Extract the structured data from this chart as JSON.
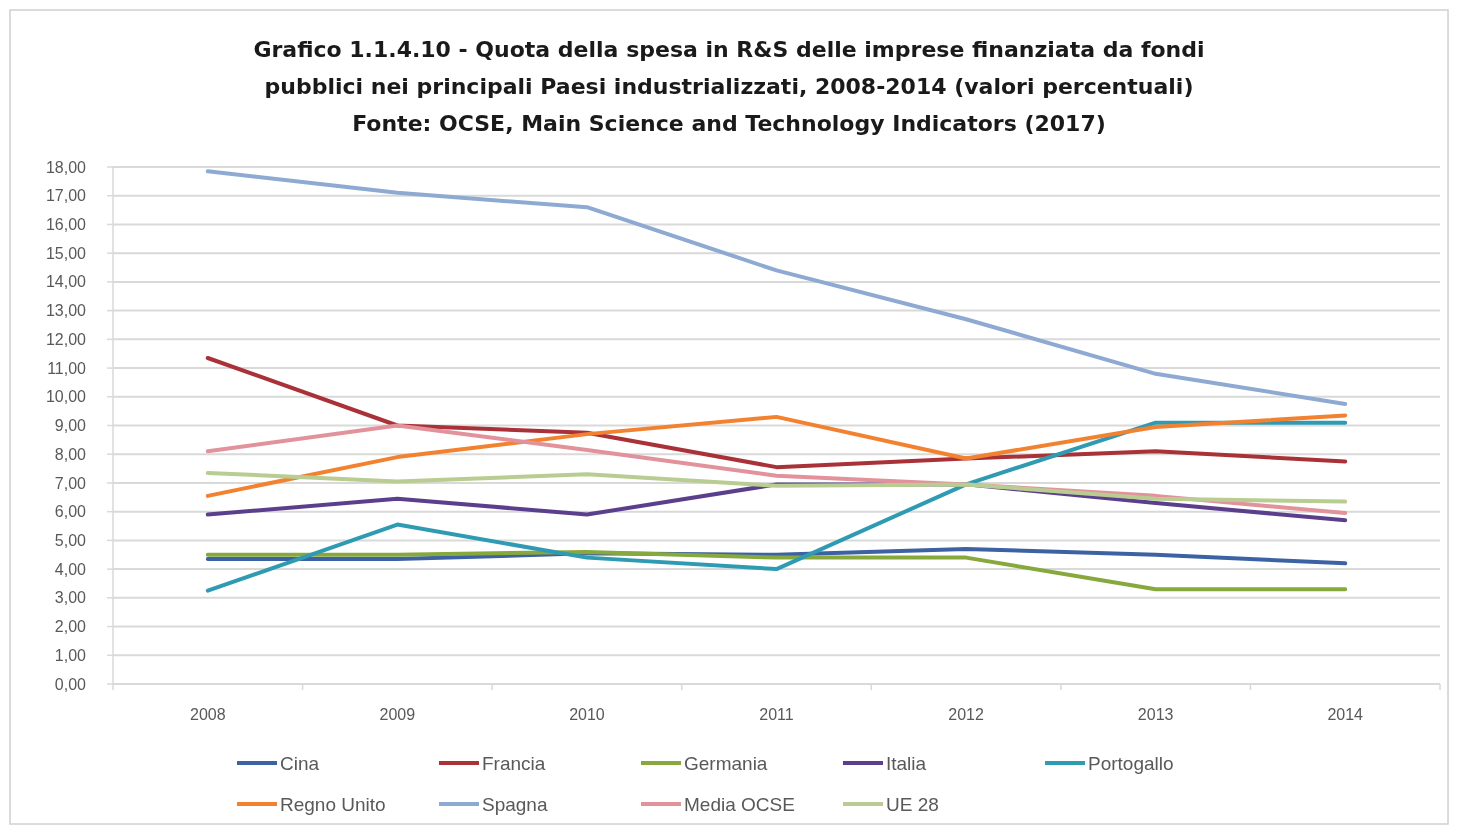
{
  "chart_data": {
    "type": "line",
    "title": "Grafico 1.1.4.10 - Quota della spesa in R&S delle imprese finanziata da fondi pubblici nei principali Paesi industrializzati, 2008-2014 (valori percentuali)",
    "annotations": [
      "Fonte: OCSE, Main Science and Technology Indicators (2017)"
    ],
    "categories": [
      "2008",
      "2009",
      "2010",
      "2011",
      "2012",
      "2013",
      "2014"
    ],
    "series": [
      {
        "name": "Cina",
        "color": "#3d62a3",
        "values": [
          4.35,
          4.35,
          4.55,
          4.5,
          4.7,
          4.5,
          4.2
        ]
      },
      {
        "name": "Francia",
        "color": "#a93239",
        "values": [
          11.35,
          9.0,
          8.75,
          7.55,
          7.85,
          8.1,
          7.75
        ]
      },
      {
        "name": "Germania",
        "color": "#86a83c",
        "values": [
          4.5,
          4.5,
          4.6,
          4.4,
          4.4,
          3.3,
          3.3
        ]
      },
      {
        "name": "Italia",
        "color": "#5b3f8c",
        "values": [
          5.9,
          6.45,
          5.9,
          6.95,
          6.95,
          6.3,
          5.7
        ]
      },
      {
        "name": "Portogallo",
        "color": "#2f9bb2",
        "values": [
          3.25,
          5.55,
          4.4,
          4.0,
          6.95,
          9.1,
          9.1
        ]
      },
      {
        "name": "Regno Unito",
        "color": "#f28230",
        "values": [
          6.55,
          7.9,
          8.7,
          9.3,
          7.85,
          8.95,
          9.35
        ]
      },
      {
        "name": "Spagna",
        "color": "#8ea9d2",
        "values": [
          17.85,
          17.1,
          16.6,
          14.4,
          12.7,
          10.8,
          9.75
        ]
      },
      {
        "name": "Media OCSE",
        "color": "#e2929b",
        "values": [
          8.1,
          9.0,
          8.15,
          7.25,
          6.95,
          6.55,
          5.95
        ]
      },
      {
        "name": "UE 28",
        "color": "#b9cd92",
        "values": [
          7.35,
          7.05,
          7.3,
          6.9,
          6.95,
          6.45,
          6.35
        ]
      }
    ],
    "ylim": [
      0,
      18
    ],
    "yticks": [
      {
        "value": 0,
        "label": "0,00"
      },
      {
        "value": 1,
        "label": "1,00"
      },
      {
        "value": 2,
        "label": "2,00"
      },
      {
        "value": 3,
        "label": "3,00"
      },
      {
        "value": 4,
        "label": "4,00"
      },
      {
        "value": 5,
        "label": "5,00"
      },
      {
        "value": 6,
        "label": "6,00"
      },
      {
        "value": 7,
        "label": "7,00"
      },
      {
        "value": 8,
        "label": "8,00"
      },
      {
        "value": 9,
        "label": "9,00"
      },
      {
        "value": 10,
        "label": "10,00"
      },
      {
        "value": 11,
        "label": "11,00"
      },
      {
        "value": 12,
        "label": "12,00"
      },
      {
        "value": 13,
        "label": "13,00"
      },
      {
        "value": 14,
        "label": "14,00"
      },
      {
        "value": 15,
        "label": "15,00"
      },
      {
        "value": 16,
        "label": "16,00"
      },
      {
        "value": 17,
        "label": "17,00"
      },
      {
        "value": 18,
        "label": "18,00"
      }
    ],
    "grid": "y",
    "legend": "bottom"
  }
}
